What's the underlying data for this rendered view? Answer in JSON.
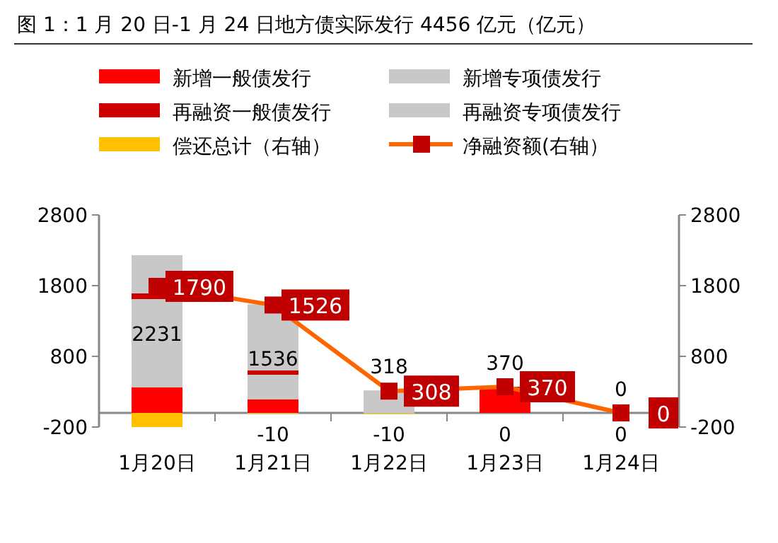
{
  "chart_data": {
    "type": "bar",
    "title": "图 1：1 月 20 日-1 月 24 日地方债实际发行 4456 亿元（亿元）",
    "categories": [
      "1月20日",
      "1月21日",
      "1月22日",
      "1月23日",
      "1月24日"
    ],
    "stacked": true,
    "series": [
      {
        "name": "新增一般债发行",
        "color": "#ff0000",
        "values": [
          360,
          190,
          0,
          370,
          0
        ]
      },
      {
        "name": "新增专项债发行",
        "color": "#c8c8c8",
        "values": [
          1250,
          350,
          318,
          0,
          0
        ]
      },
      {
        "name": "再融资一般债发行",
        "color": "#cc0000",
        "values": [
          80,
          60,
          0,
          0,
          0
        ]
      },
      {
        "name": "再融资专项债发行",
        "color": "#c8c8c8",
        "values": [
          541,
          936,
          0,
          0,
          0
        ]
      },
      {
        "name": "偿还总计（右轴）",
        "color": "#ffc000",
        "axis": "y2",
        "values": [
          -200,
          -10,
          -10,
          0,
          0
        ],
        "value_labels": [
          null,
          "-10",
          "-10",
          "0",
          "0"
        ]
      },
      {
        "name": "净融资额(右轴）",
        "type": "line",
        "color": "#ff6600",
        "axis": "y2",
        "marker": "square",
        "values": [
          1790,
          1526,
          308,
          370,
          0
        ],
        "value_labels": [
          "1790",
          "1526",
          "308",
          "370",
          "0"
        ]
      }
    ],
    "totals": [
      "2231",
      "1536",
      "318",
      "370",
      "0"
    ],
    "ylim": [
      -200,
      2800
    ],
    "yticks": [
      -200,
      800,
      1800,
      2800
    ],
    "y2lim": [
      -200,
      2800
    ],
    "y2ticks": [
      -200,
      800,
      1800,
      2800
    ],
    "legend": "top",
    "grid": false
  }
}
